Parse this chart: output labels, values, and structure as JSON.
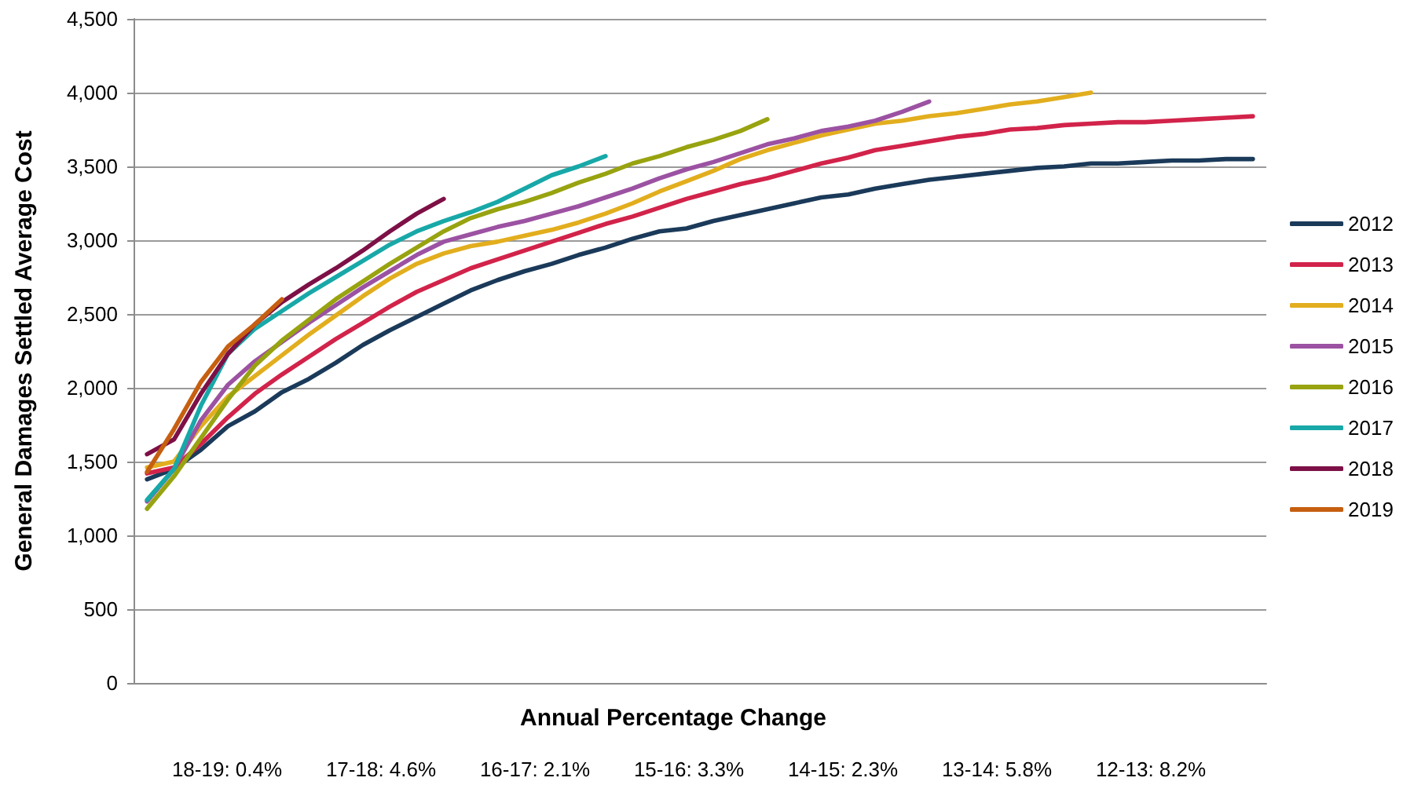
{
  "chart_data": {
    "type": "line",
    "xlabel": "Annual Percentage Change",
    "ylabel": "General Damages Settled Average Cost",
    "annotations": [
      "18-19: 0.4%",
      "17-18: 4.6%",
      "16-17: 2.1%",
      "15-16: 3.3%",
      "14-15: 2.3%",
      "13-14: 5.8%",
      "12-13: 8.2%"
    ],
    "categories": [
      null,
      null,
      null,
      null,
      null,
      null,
      null,
      null,
      null,
      null,
      null,
      null,
      null,
      null,
      null,
      null,
      null,
      null,
      null,
      null,
      null,
      null,
      null,
      null,
      null,
      null,
      null,
      null,
      null,
      null,
      null,
      null,
      null,
      null,
      null,
      null,
      null,
      null,
      null,
      null,
      null,
      null
    ],
    "ylim": [
      0,
      4500
    ],
    "yticks": [
      0,
      500,
      {
        "value": 1000,
        "label": "1,000"
      },
      {
        "value": 1500,
        "label": "1,500"
      },
      {
        "value": 2000,
        "label": "2,000"
      },
      {
        "value": 2500,
        "label": "2,500"
      },
      {
        "value": 3000,
        "label": "3,000"
      },
      {
        "value": 3500,
        "label": "3,500"
      },
      {
        "value": 4000,
        "label": "4,000"
      },
      {
        "value": 4500,
        "label": "4,500"
      }
    ],
    "grid": "y",
    "legend": "right",
    "tick_labels": "y",
    "marker": "none",
    "line_style": "solid",
    "series": [
      {
        "name": "2012",
        "color": "#1b3a5a",
        "values": [
          1380,
          1450,
          1580,
          1740,
          1840,
          1970,
          2060,
          2170,
          2290,
          2390,
          2480,
          2570,
          2660,
          2730,
          2790,
          2840,
          2900,
          2950,
          3010,
          3060,
          3080,
          3130,
          3170,
          3210,
          3250,
          3290,
          3310,
          3350,
          3380,
          3410,
          3430,
          3450,
          3470,
          3490,
          3500,
          3520,
          3520,
          3530,
          3540,
          3540,
          3550,
          3550
        ]
      },
      {
        "name": "2013",
        "color": "#d2234a",
        "values": [
          1420,
          1460,
          1620,
          1800,
          1960,
          2090,
          2210,
          2330,
          2440,
          2550,
          2650,
          2730,
          2810,
          2870,
          2930,
          2990,
          3050,
          3110,
          3160,
          3220,
          3280,
          3330,
          3380,
          3420,
          3470,
          3520,
          3560,
          3610,
          3640,
          3670,
          3700,
          3720,
          3750,
          3760,
          3780,
          3790,
          3800,
          3800,
          3810,
          3820,
          3830,
          3840
        ]
      },
      {
        "name": "2014",
        "color": "#e2ae1e",
        "values": [
          1460,
          1500,
          1740,
          1940,
          2080,
          2220,
          2360,
          2490,
          2620,
          2740,
          2840,
          2910,
          2960,
          2990,
          3030,
          3070,
          3120,
          3180,
          3250,
          3330,
          3400,
          3470,
          3550,
          3610,
          3660,
          3710,
          3750,
          3790,
          3810,
          3840,
          3860,
          3890,
          3920,
          3940,
          3970,
          4000,
          null,
          null,
          null,
          null,
          null,
          null
        ]
      },
      {
        "name": "2015",
        "color": "#9c52a2",
        "values": [
          1230,
          1450,
          1780,
          2020,
          2180,
          2310,
          2440,
          2560,
          2680,
          2790,
          2900,
          2990,
          3040,
          3090,
          3130,
          3180,
          3230,
          3290,
          3350,
          3420,
          3480,
          3530,
          3590,
          3650,
          3690,
          3740,
          3770,
          3810,
          3870,
          3940,
          null,
          null,
          null,
          null,
          null,
          null,
          null,
          null,
          null,
          null,
          null,
          null
        ]
      },
      {
        "name": "2016",
        "color": "#98a310",
        "values": [
          1180,
          1400,
          1660,
          1920,
          2150,
          2320,
          2460,
          2600,
          2720,
          2840,
          2950,
          3060,
          3150,
          3210,
          3260,
          3320,
          3390,
          3450,
          3520,
          3570,
          3630,
          3680,
          3740,
          3820,
          null,
          null,
          null,
          null,
          null,
          null,
          null,
          null,
          null,
          null,
          null,
          null,
          null,
          null,
          null,
          null,
          null,
          null
        ]
      },
      {
        "name": "2017",
        "color": "#18a8a8",
        "values": [
          1240,
          1450,
          1880,
          2230,
          2400,
          2520,
          2640,
          2750,
          2860,
          2970,
          3060,
          3130,
          3190,
          3260,
          3350,
          3440,
          3500,
          3570,
          null,
          null,
          null,
          null,
          null,
          null,
          null,
          null,
          null,
          null,
          null,
          null,
          null,
          null,
          null,
          null,
          null,
          null,
          null,
          null,
          null,
          null,
          null,
          null
        ]
      },
      {
        "name": "2018",
        "color": "#7d1046",
        "values": [
          1550,
          1650,
          1960,
          2230,
          2430,
          2580,
          2700,
          2810,
          2930,
          3060,
          3180,
          3280,
          null,
          null,
          null,
          null,
          null,
          null,
          null,
          null,
          null,
          null,
          null,
          null,
          null,
          null,
          null,
          null,
          null,
          null,
          null,
          null,
          null,
          null,
          null,
          null,
          null,
          null,
          null,
          null,
          null,
          null
        ]
      },
      {
        "name": "2019",
        "color": "#c65f10",
        "values": [
          1430,
          1720,
          2040,
          2280,
          2430,
          2600,
          null,
          null,
          null,
          null,
          null,
          null,
          null,
          null,
          null,
          null,
          null,
          null,
          null,
          null,
          null,
          null,
          null,
          null,
          null,
          null,
          null,
          null,
          null,
          null,
          null,
          null,
          null,
          null,
          null,
          null,
          null,
          null,
          null,
          null,
          null,
          null
        ]
      }
    ]
  }
}
